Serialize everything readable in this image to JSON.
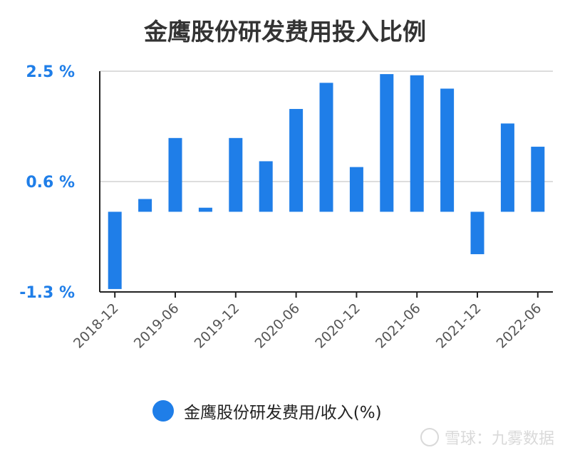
{
  "colors": {
    "bar": "#1f7ee8",
    "axis": "#222222",
    "grid": "#dddddd",
    "ytick": "#1f7ee8"
  },
  "chart_data": {
    "type": "bar",
    "title": "金鹰股份研发费用投入比例",
    "series": [
      {
        "name": "金鹰股份研发费用/收入(%)",
        "values": [
          -1.25,
          0.3,
          1.35,
          0.15,
          1.35,
          0.95,
          1.85,
          2.3,
          0.85,
          2.45,
          2.43,
          2.2,
          -0.65,
          1.6,
          1.2
        ]
      }
    ],
    "x_tick_labels": [
      "2018-12",
      "2019-06",
      "2019-12",
      "2020-06",
      "2020-12",
      "2021-06",
      "2021-12",
      "2022-06"
    ],
    "y_tick_labels": [
      "2.5 %",
      "0.6 %",
      "-1.3 %"
    ],
    "y_ticks": [
      2.5,
      0.6,
      -1.3
    ],
    "ylim": [
      -1.3,
      2.5
    ],
    "grid": true,
    "legend_position": "bottom"
  },
  "watermark": {
    "text": "雪球：九雾数据"
  }
}
